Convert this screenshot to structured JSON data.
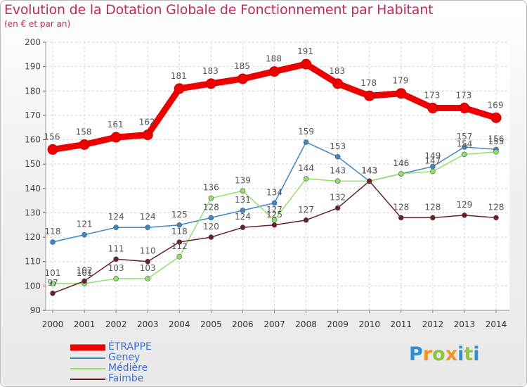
{
  "title": "Evolution de la Dotation Globale de Fonctionnement par Habitant",
  "subtitle": "(en € et par an)",
  "logo": {
    "letters": [
      {
        "ch": "P",
        "color": "#2d8fd6"
      },
      {
        "ch": "r",
        "color": "#f29422"
      },
      {
        "ch": "o",
        "color": "#8cc63f"
      },
      {
        "ch": "x",
        "color": "#f29422"
      },
      {
        "ch": "i",
        "color": "#2d8fd6"
      },
      {
        "ch": "t",
        "color": "#8cc63f"
      },
      {
        "ch": "i",
        "color": "#2d8fd6"
      }
    ]
  },
  "chart_data": {
    "type": "line",
    "title": "Evolution de la Dotation Globale de Fonctionnement par Habitant",
    "subtitle": "(en € et par an)",
    "xlabel": "",
    "ylabel": "",
    "x": [
      "2000",
      "2001",
      "2002",
      "2003",
      "2004",
      "2005",
      "2006",
      "2007",
      "2008",
      "2009",
      "2010",
      "2011",
      "2012",
      "2013",
      "2014"
    ],
    "ylim": [
      90,
      200
    ],
    "yticks": [
      90,
      100,
      110,
      120,
      130,
      140,
      150,
      160,
      170,
      180,
      190,
      200
    ],
    "grid": true,
    "legend_position": "bottom-left",
    "series": [
      {
        "name": "ÉTRAPPE",
        "color": "#ee0000",
        "values": [
          156,
          158,
          161,
          162,
          181,
          183,
          185,
          188,
          191,
          183,
          178,
          179,
          173,
          173,
          169
        ]
      },
      {
        "name": "Geney",
        "color": "#3f88c5",
        "values": [
          118,
          121,
          124,
          124,
          125,
          128,
          131,
          134,
          159,
          153,
          143,
          146,
          149,
          157,
          156
        ]
      },
      {
        "name": "Médière",
        "color": "#90e06a",
        "values": [
          101,
          101,
          103,
          103,
          112,
          136,
          139,
          127,
          144,
          143,
          143,
          146,
          147,
          154,
          155
        ]
      },
      {
        "name": "Faimbe",
        "color": "#6b1f26",
        "values": [
          97,
          102,
          111,
          110,
          118,
          120,
          124,
          125,
          127,
          132,
          143,
          128,
          128,
          129,
          128
        ]
      }
    ]
  }
}
